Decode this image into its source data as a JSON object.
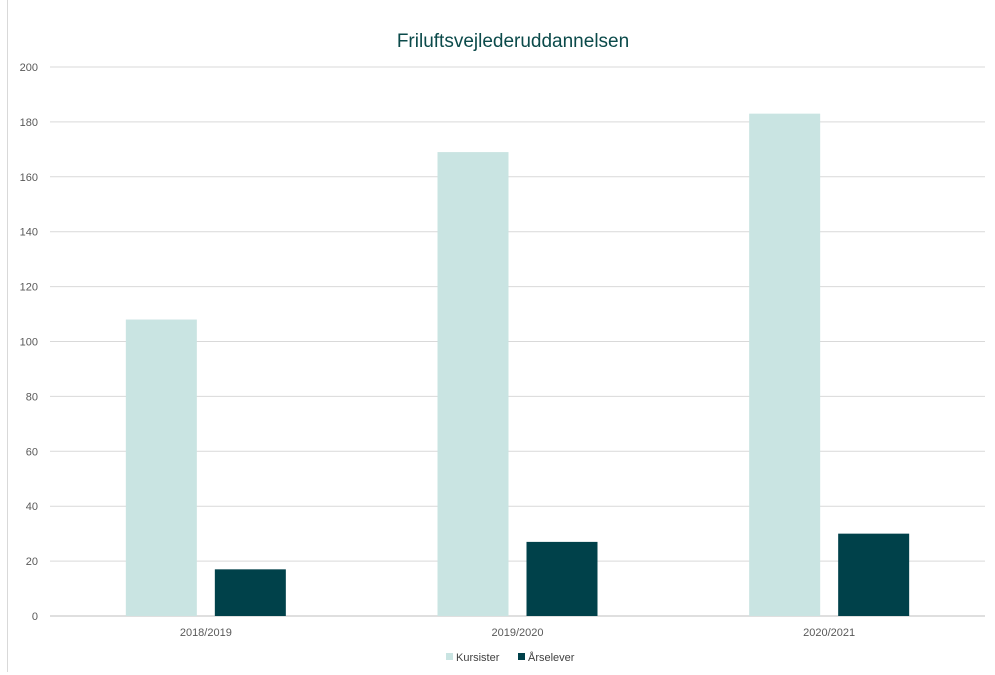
{
  "chart_data": {
    "type": "bar",
    "title": "Friluftsvejlederuddannelsen",
    "categories": [
      "2018/2019",
      "2019/2020",
      "2020/2021"
    ],
    "series": [
      {
        "name": "Kursister",
        "values": [
          108,
          169,
          183
        ],
        "color": "#c9e4e2"
      },
      {
        "name": "Årselever",
        "values": [
          17,
          27,
          30
        ],
        "color": "#00414a"
      }
    ],
    "ylim": [
      0,
      200
    ],
    "yticks": [
      0,
      20,
      40,
      60,
      80,
      100,
      120,
      140,
      160,
      180,
      200
    ],
    "grid": true,
    "legend": "bottom"
  }
}
